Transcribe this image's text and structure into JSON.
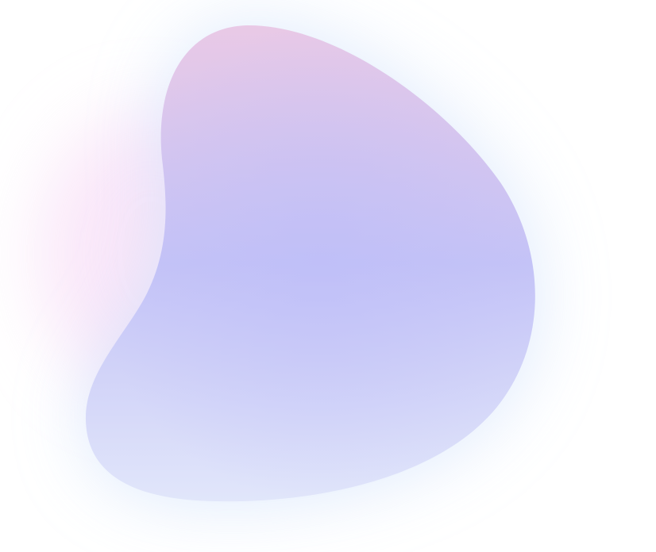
{
  "colors": {
    "background": "#ffffff",
    "blob_top": "#e9c9e6",
    "blob_middle": "#c4c3f7",
    "blob_bottom": "#e1e6fa",
    "glow_pink": "#f6d6f4",
    "glow_blue": "#cfe0fb"
  }
}
